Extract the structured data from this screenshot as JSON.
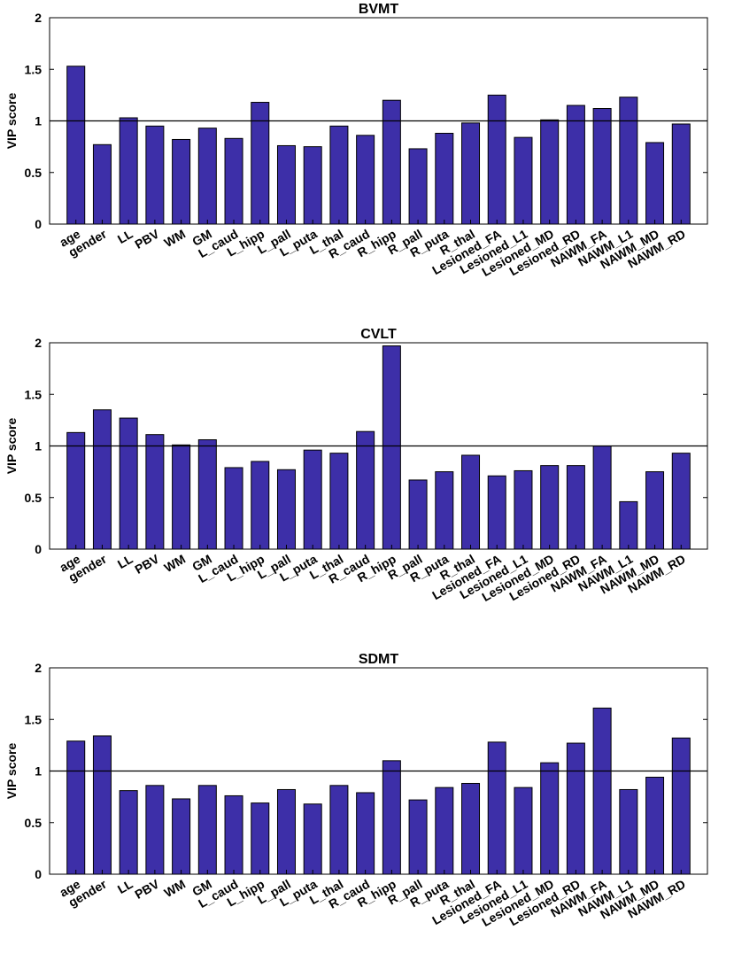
{
  "chart_data": [
    {
      "type": "bar",
      "title": "BVMT",
      "xlabel": "",
      "ylabel": "VIP score",
      "ylim": [
        0,
        2
      ],
      "yticks": [
        "0",
        "0.5",
        "1",
        "1.5",
        "2"
      ],
      "reference_line": 1,
      "categories": [
        "age",
        "gender",
        "LL",
        "PBV",
        "WM",
        "GM",
        "L_caud",
        "L_hipp",
        "L_pall",
        "L_puta",
        "L_thal",
        "R_caud",
        "R_hipp",
        "R_pall",
        "R_puta",
        "R_thal",
        "Lesioned_FA",
        "Lesioned_L1",
        "Lesioned_MD",
        "Lesioned_RD",
        "NAWM_FA",
        "NAWM_L1",
        "NAWM_MD",
        "NAWM_RD"
      ],
      "values": [
        1.53,
        0.77,
        1.03,
        0.95,
        0.82,
        0.93,
        0.83,
        1.18,
        0.76,
        0.75,
        0.95,
        0.86,
        1.2,
        0.73,
        0.88,
        0.98,
        1.25,
        0.84,
        1.01,
        1.15,
        1.12,
        1.23,
        0.79,
        0.97
      ]
    },
    {
      "type": "bar",
      "title": "CVLT",
      "xlabel": "",
      "ylabel": "VIP score",
      "ylim": [
        0,
        2
      ],
      "yticks": [
        "0",
        "0.5",
        "1",
        "1.5",
        "2"
      ],
      "reference_line": 1,
      "categories": [
        "age",
        "gender",
        "LL",
        "PBV",
        "WM",
        "GM",
        "L_caud",
        "L_hipp",
        "L_pall",
        "L_puta",
        "L_thal",
        "R_caud",
        "R_hipp",
        "R_pall",
        "R_puta",
        "R_thal",
        "Lesioned_FA",
        "Lesioned_L1",
        "Lesioned_MD",
        "Lesioned_RD",
        "NAWM_FA",
        "NAWM_L1",
        "NAWM_MD",
        "NAWM_RD"
      ],
      "values": [
        1.13,
        1.35,
        1.27,
        1.11,
        1.01,
        1.06,
        0.79,
        0.85,
        0.77,
        0.96,
        0.93,
        1.14,
        1.97,
        0.67,
        0.75,
        0.91,
        0.71,
        0.76,
        0.81,
        0.81,
        1.0,
        0.46,
        0.75,
        0.93
      ]
    },
    {
      "type": "bar",
      "title": "SDMT",
      "xlabel": "",
      "ylabel": "VIP score",
      "ylim": [
        0,
        2
      ],
      "yticks": [
        "0",
        "0.5",
        "1",
        "1.5",
        "2"
      ],
      "reference_line": 1,
      "categories": [
        "age",
        "gender",
        "LL",
        "PBV",
        "WM",
        "GM",
        "L_caud",
        "L_hipp",
        "L_pall",
        "L_puta",
        "L_thal",
        "R_caud",
        "R_hipp",
        "R_pall",
        "R_puta",
        "R_thal",
        "Lesioned_FA",
        "Lesioned_L1",
        "Lesioned_MD",
        "Lesioned_RD",
        "NAWM_FA",
        "NAWM_L1",
        "NAWM_MD",
        "NAWM_RD"
      ],
      "values": [
        1.29,
        1.34,
        0.81,
        0.86,
        0.73,
        0.86,
        0.76,
        0.69,
        0.82,
        0.68,
        0.86,
        0.79,
        1.1,
        0.72,
        0.84,
        0.88,
        1.28,
        0.84,
        1.08,
        1.27,
        1.61,
        0.82,
        0.94,
        1.32
      ]
    }
  ]
}
